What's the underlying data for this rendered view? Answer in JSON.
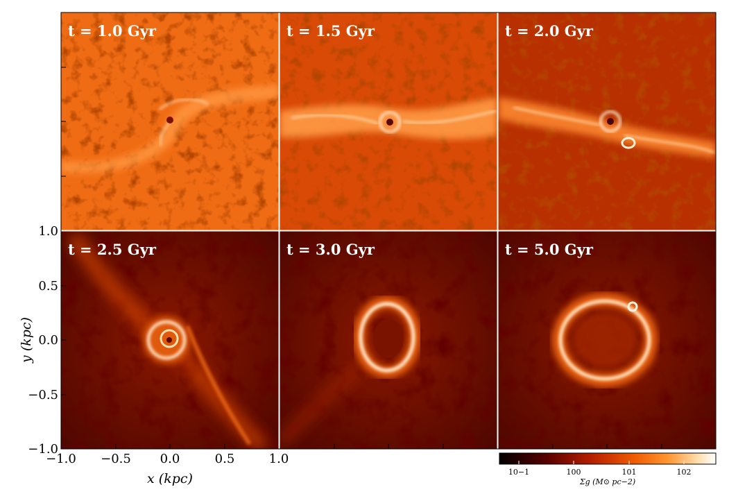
{
  "panels": [
    {
      "label": "t = 1.0 Gyr",
      "morphology": "bar"
    },
    {
      "label": "t = 1.5 Gyr",
      "morphology": "bar"
    },
    {
      "label": "t = 2.0 Gyr",
      "morphology": "bar"
    },
    {
      "label": "t = 2.5 Gyr",
      "morphology": "ring-spiral"
    },
    {
      "label": "t = 3.0 Gyr",
      "morphology": "ring"
    },
    {
      "label": "t = 5.0 Gyr",
      "morphology": "ring"
    }
  ],
  "axes": {
    "xlabel": "x (kpc)",
    "ylabel": "y (kpc)",
    "xticks": [
      "−1.0",
      "−0.5",
      "0.0",
      "0.5",
      "1.0"
    ],
    "yticks": [
      "1.0",
      "0.5",
      "0.0",
      "−0.5",
      "−1.0"
    ],
    "xlim": [
      -1.0,
      1.0
    ],
    "ylim": [
      -1.0,
      1.0
    ]
  },
  "colorbar": {
    "label": "Σg (M⊙ pc−2)",
    "ticks": [
      "10−1",
      "100",
      "101",
      "102"
    ],
    "colormap": "gist_heat",
    "colors": [
      "#000000",
      "#5a0000",
      "#b41e00",
      "#f05a00",
      "#ff9632",
      "#ffe0b0",
      "#ffffff"
    ]
  }
}
